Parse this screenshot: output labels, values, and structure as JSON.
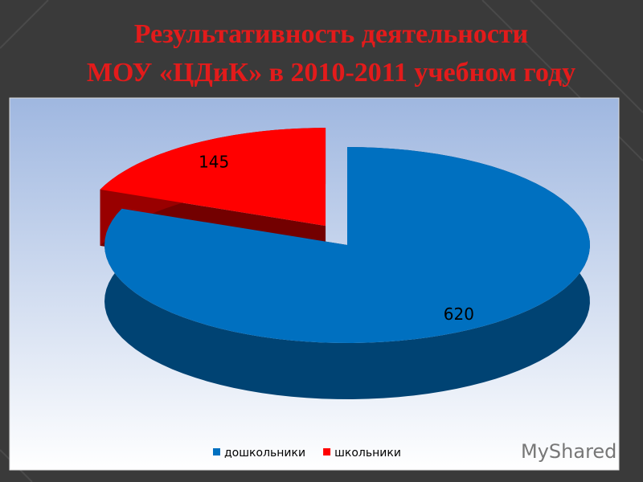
{
  "chart_data": {
    "type": "pie",
    "title": [
      "Результативность деятельности",
      "МОУ «ЦДиК» в 2010-2011 учебном году"
    ],
    "categories": [
      "дошкольники",
      "школьники"
    ],
    "values": [
      620,
      145
    ],
    "colors": [
      "#0070c0",
      "#ff0000"
    ],
    "exploded": [
      false,
      true
    ],
    "legend": "bottom",
    "watermark": "MyShared"
  }
}
